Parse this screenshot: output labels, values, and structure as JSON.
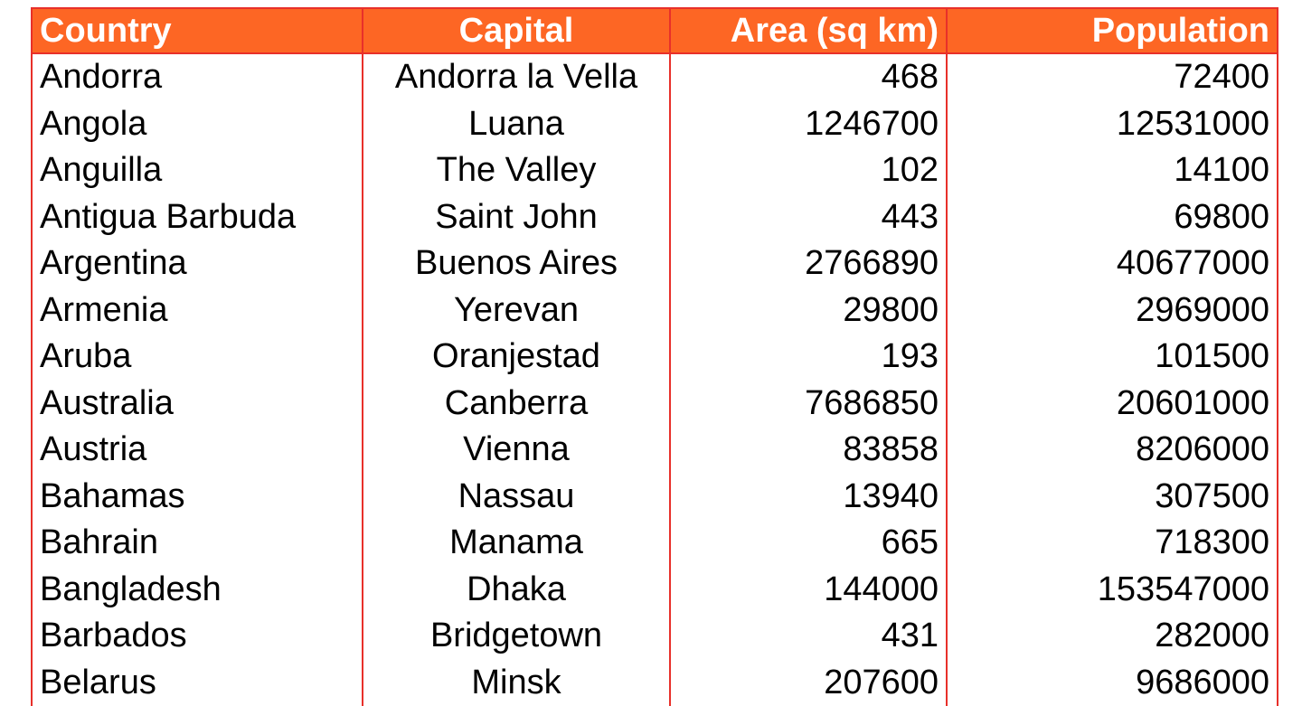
{
  "table": {
    "columns": [
      "Country",
      "Capital",
      "Area (sq km)",
      "Population"
    ],
    "rows": [
      [
        "Andorra",
        "Andorra la Vella",
        "468",
        "72400"
      ],
      [
        "Angola",
        "Luana",
        "1246700",
        "12531000"
      ],
      [
        "Anguilla",
        "The Valley",
        "102",
        "14100"
      ],
      [
        "Antigua Barbuda",
        "Saint John",
        "443",
        "69800"
      ],
      [
        "Argentina",
        "Buenos Aires",
        "2766890",
        "40677000"
      ],
      [
        "Armenia",
        "Yerevan",
        "29800",
        "2969000"
      ],
      [
        "Aruba",
        "Oranjestad",
        "193",
        "101500"
      ],
      [
        "Australia",
        "Canberra",
        "7686850",
        "20601000"
      ],
      [
        "Austria",
        "Vienna",
        "83858",
        "8206000"
      ],
      [
        "Bahamas",
        "Nassau",
        "13940",
        "307500"
      ],
      [
        "Bahrain",
        "Manama",
        "665",
        "718300"
      ],
      [
        "Bangladesh",
        "Dhaka",
        "144000",
        "153547000"
      ],
      [
        "Barbados",
        "Bridgetown",
        "431",
        "282000"
      ],
      [
        "Belarus",
        "Minsk",
        "207600",
        "9686000"
      ]
    ]
  },
  "colors": {
    "header_background": "#fd6624",
    "grid_line": "#e8302a",
    "header_text": "#ffffff"
  }
}
